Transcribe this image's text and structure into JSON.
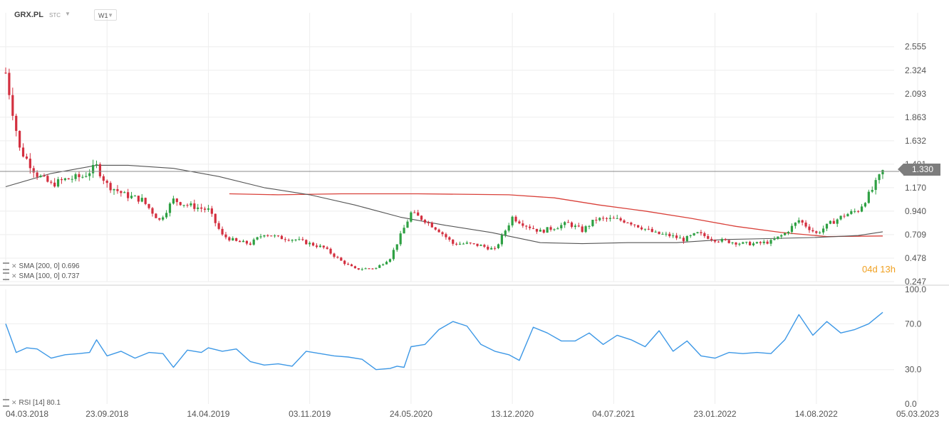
{
  "header": {
    "symbol": "GRX.PL",
    "instrument_type": "STC",
    "timeframe": "W1"
  },
  "indicators": {
    "sma200_label": "SMA [200, 0] 0.696",
    "sma100_label": "SMA [100, 0] 0.737",
    "rsi_label": "RSI [14] 80.1"
  },
  "timer": "04d 13h",
  "last_price_label": "1.330",
  "colors": {
    "up": "#2ea043",
    "down": "#d32f3f",
    "sma200": "#d9413a",
    "sma100": "#555555",
    "rsi": "#3d98e6",
    "price_line": "#888888",
    "grid": "#eeeeee",
    "timer": "#f0a020"
  },
  "chart_data": [
    {
      "type": "candlestick",
      "panel": "price",
      "ylim": [
        0.247,
        2.7
      ],
      "y_ticks": [
        "2.555",
        "2.324",
        "2.093",
        "1.863",
        "1.632",
        "1.401",
        "1.170",
        "0.940",
        "0.709",
        "0.478",
        "0.247"
      ],
      "x_ticks": [
        "04.03.2018",
        "23.09.2018",
        "14.04.2019",
        "03.11.2019",
        "24.05.2020",
        "13.12.2020",
        "04.07.2021",
        "23.01.2022",
        "14.08.2022",
        "05.03.2023"
      ],
      "x_start": "2018-03-04",
      "x_end": "2023-03-05",
      "last_price": 1.33,
      "close_series": {
        "name": "Close",
        "dates": [
          "2018-03-04",
          "2018-04-01",
          "2018-05-06",
          "2018-06-03",
          "2018-07-01",
          "2018-08-05",
          "2018-09-02",
          "2018-09-23",
          "2018-10-28",
          "2018-12-02",
          "2019-01-06",
          "2019-02-03",
          "2019-03-03",
          "2019-04-14",
          "2019-05-12",
          "2019-06-09",
          "2019-07-07",
          "2019-08-04",
          "2019-09-01",
          "2019-10-06",
          "2019-11-03",
          "2019-12-01",
          "2020-01-05",
          "2020-02-02",
          "2020-03-15",
          "2020-04-12",
          "2020-05-24",
          "2020-06-21",
          "2020-07-19",
          "2020-08-16",
          "2020-09-13",
          "2020-10-11",
          "2020-11-08",
          "2020-12-13",
          "2021-01-10",
          "2021-02-07",
          "2021-03-07",
          "2021-04-04",
          "2021-05-02",
          "2021-05-30",
          "2021-07-04",
          "2021-08-01",
          "2021-08-29",
          "2021-09-26",
          "2021-10-24",
          "2021-11-21",
          "2021-12-19",
          "2022-01-23",
          "2022-02-20",
          "2022-03-20",
          "2022-04-17",
          "2022-05-15",
          "2022-06-12",
          "2022-07-10",
          "2022-08-14",
          "2022-09-11",
          "2022-10-09",
          "2022-11-06",
          "2022-12-04",
          "2022-12-25"
        ],
        "values": [
          2.3,
          1.55,
          1.3,
          1.2,
          1.25,
          1.28,
          1.38,
          1.2,
          1.1,
          1.05,
          0.85,
          1.05,
          1.0,
          0.95,
          0.7,
          0.64,
          0.62,
          0.72,
          0.68,
          0.66,
          0.62,
          0.58,
          0.45,
          0.37,
          0.38,
          0.48,
          0.92,
          0.85,
          0.75,
          0.62,
          0.62,
          0.6,
          0.56,
          0.88,
          0.8,
          0.74,
          0.78,
          0.82,
          0.75,
          0.86,
          0.86,
          0.84,
          0.78,
          0.72,
          0.7,
          0.66,
          0.72,
          0.66,
          0.64,
          0.62,
          0.62,
          0.64,
          0.72,
          0.85,
          0.72,
          0.82,
          0.9,
          0.95,
          1.15,
          1.33
        ]
      }
    },
    {
      "type": "line",
      "panel": "price",
      "series": [
        {
          "name": "SMA [200, 0]",
          "dates": [
            "2019-05-26",
            "2019-09-01",
            "2020-01-05",
            "2020-06-07",
            "2020-12-06",
            "2021-03-07",
            "2021-06-06",
            "2021-09-05",
            "2021-12-05",
            "2022-03-06",
            "2022-06-05",
            "2022-09-04",
            "2022-12-25"
          ],
          "values": [
            1.11,
            1.1,
            1.11,
            1.11,
            1.1,
            1.07,
            1.0,
            0.94,
            0.87,
            0.79,
            0.73,
            0.69,
            0.696
          ]
        },
        {
          "name": "SMA [100, 0]",
          "dates": [
            "2018-03-04",
            "2018-06-03",
            "2018-09-02",
            "2018-11-04",
            "2019-02-03",
            "2019-05-05",
            "2019-08-04",
            "2019-11-03",
            "2020-02-02",
            "2020-05-03",
            "2020-08-02",
            "2020-11-01",
            "2021-02-07",
            "2021-05-02",
            "2021-08-01",
            "2021-11-07",
            "2022-02-06",
            "2022-05-08",
            "2022-08-07",
            "2022-11-06",
            "2022-12-25"
          ],
          "values": [
            1.18,
            1.31,
            1.39,
            1.39,
            1.36,
            1.28,
            1.17,
            1.1,
            1.0,
            0.88,
            0.8,
            0.73,
            0.63,
            0.62,
            0.63,
            0.63,
            0.66,
            0.67,
            0.68,
            0.7,
            0.737
          ]
        }
      ]
    },
    {
      "type": "line",
      "panel": "rsi",
      "ylim": [
        0,
        100
      ],
      "y_ticks": [
        "100.0",
        "70.0",
        "30.0",
        "0.0"
      ],
      "series": [
        {
          "name": "RSI [14]",
          "dates": [
            "2018-03-04",
            "2018-03-25",
            "2018-04-15",
            "2018-05-06",
            "2018-06-03",
            "2018-07-01",
            "2018-07-29",
            "2018-08-19",
            "2018-09-02",
            "2018-09-23",
            "2018-10-21",
            "2018-11-18",
            "2018-12-16",
            "2019-01-13",
            "2019-02-03",
            "2019-03-03",
            "2019-03-31",
            "2019-04-14",
            "2019-05-12",
            "2019-06-09",
            "2019-07-07",
            "2019-08-04",
            "2019-09-01",
            "2019-09-29",
            "2019-10-27",
            "2019-11-24",
            "2019-12-22",
            "2020-01-19",
            "2020-02-16",
            "2020-03-15",
            "2020-04-12",
            "2020-04-26",
            "2020-05-10",
            "2020-05-24",
            "2020-06-21",
            "2020-07-19",
            "2020-08-16",
            "2020-09-13",
            "2020-10-11",
            "2020-11-08",
            "2020-12-06",
            "2020-12-27",
            "2021-01-24",
            "2021-02-21",
            "2021-03-21",
            "2021-04-18",
            "2021-05-16",
            "2021-06-13",
            "2021-07-11",
            "2021-08-08",
            "2021-09-05",
            "2021-10-03",
            "2021-10-31",
            "2021-11-28",
            "2021-12-26",
            "2022-01-23",
            "2022-02-20",
            "2022-03-20",
            "2022-04-17",
            "2022-05-15",
            "2022-06-12",
            "2022-07-10",
            "2022-08-07",
            "2022-09-04",
            "2022-10-02",
            "2022-10-30",
            "2022-11-27",
            "2022-12-25"
          ],
          "values": [
            70,
            45,
            49,
            48,
            40,
            43,
            44,
            45,
            56,
            42,
            46,
            40,
            45,
            44,
            32,
            47,
            45,
            49,
            46,
            48,
            37,
            34,
            35,
            33,
            46,
            44,
            42,
            41,
            39,
            30,
            31,
            33,
            32,
            50,
            52,
            65,
            72,
            68,
            52,
            46,
            43,
            38,
            67,
            62,
            55,
            55,
            62,
            52,
            60,
            56,
            50,
            64,
            46,
            55,
            42,
            40,
            45,
            44,
            45,
            44,
            56,
            78,
            60,
            72,
            62,
            65,
            70,
            80
          ]
        }
      ]
    }
  ]
}
